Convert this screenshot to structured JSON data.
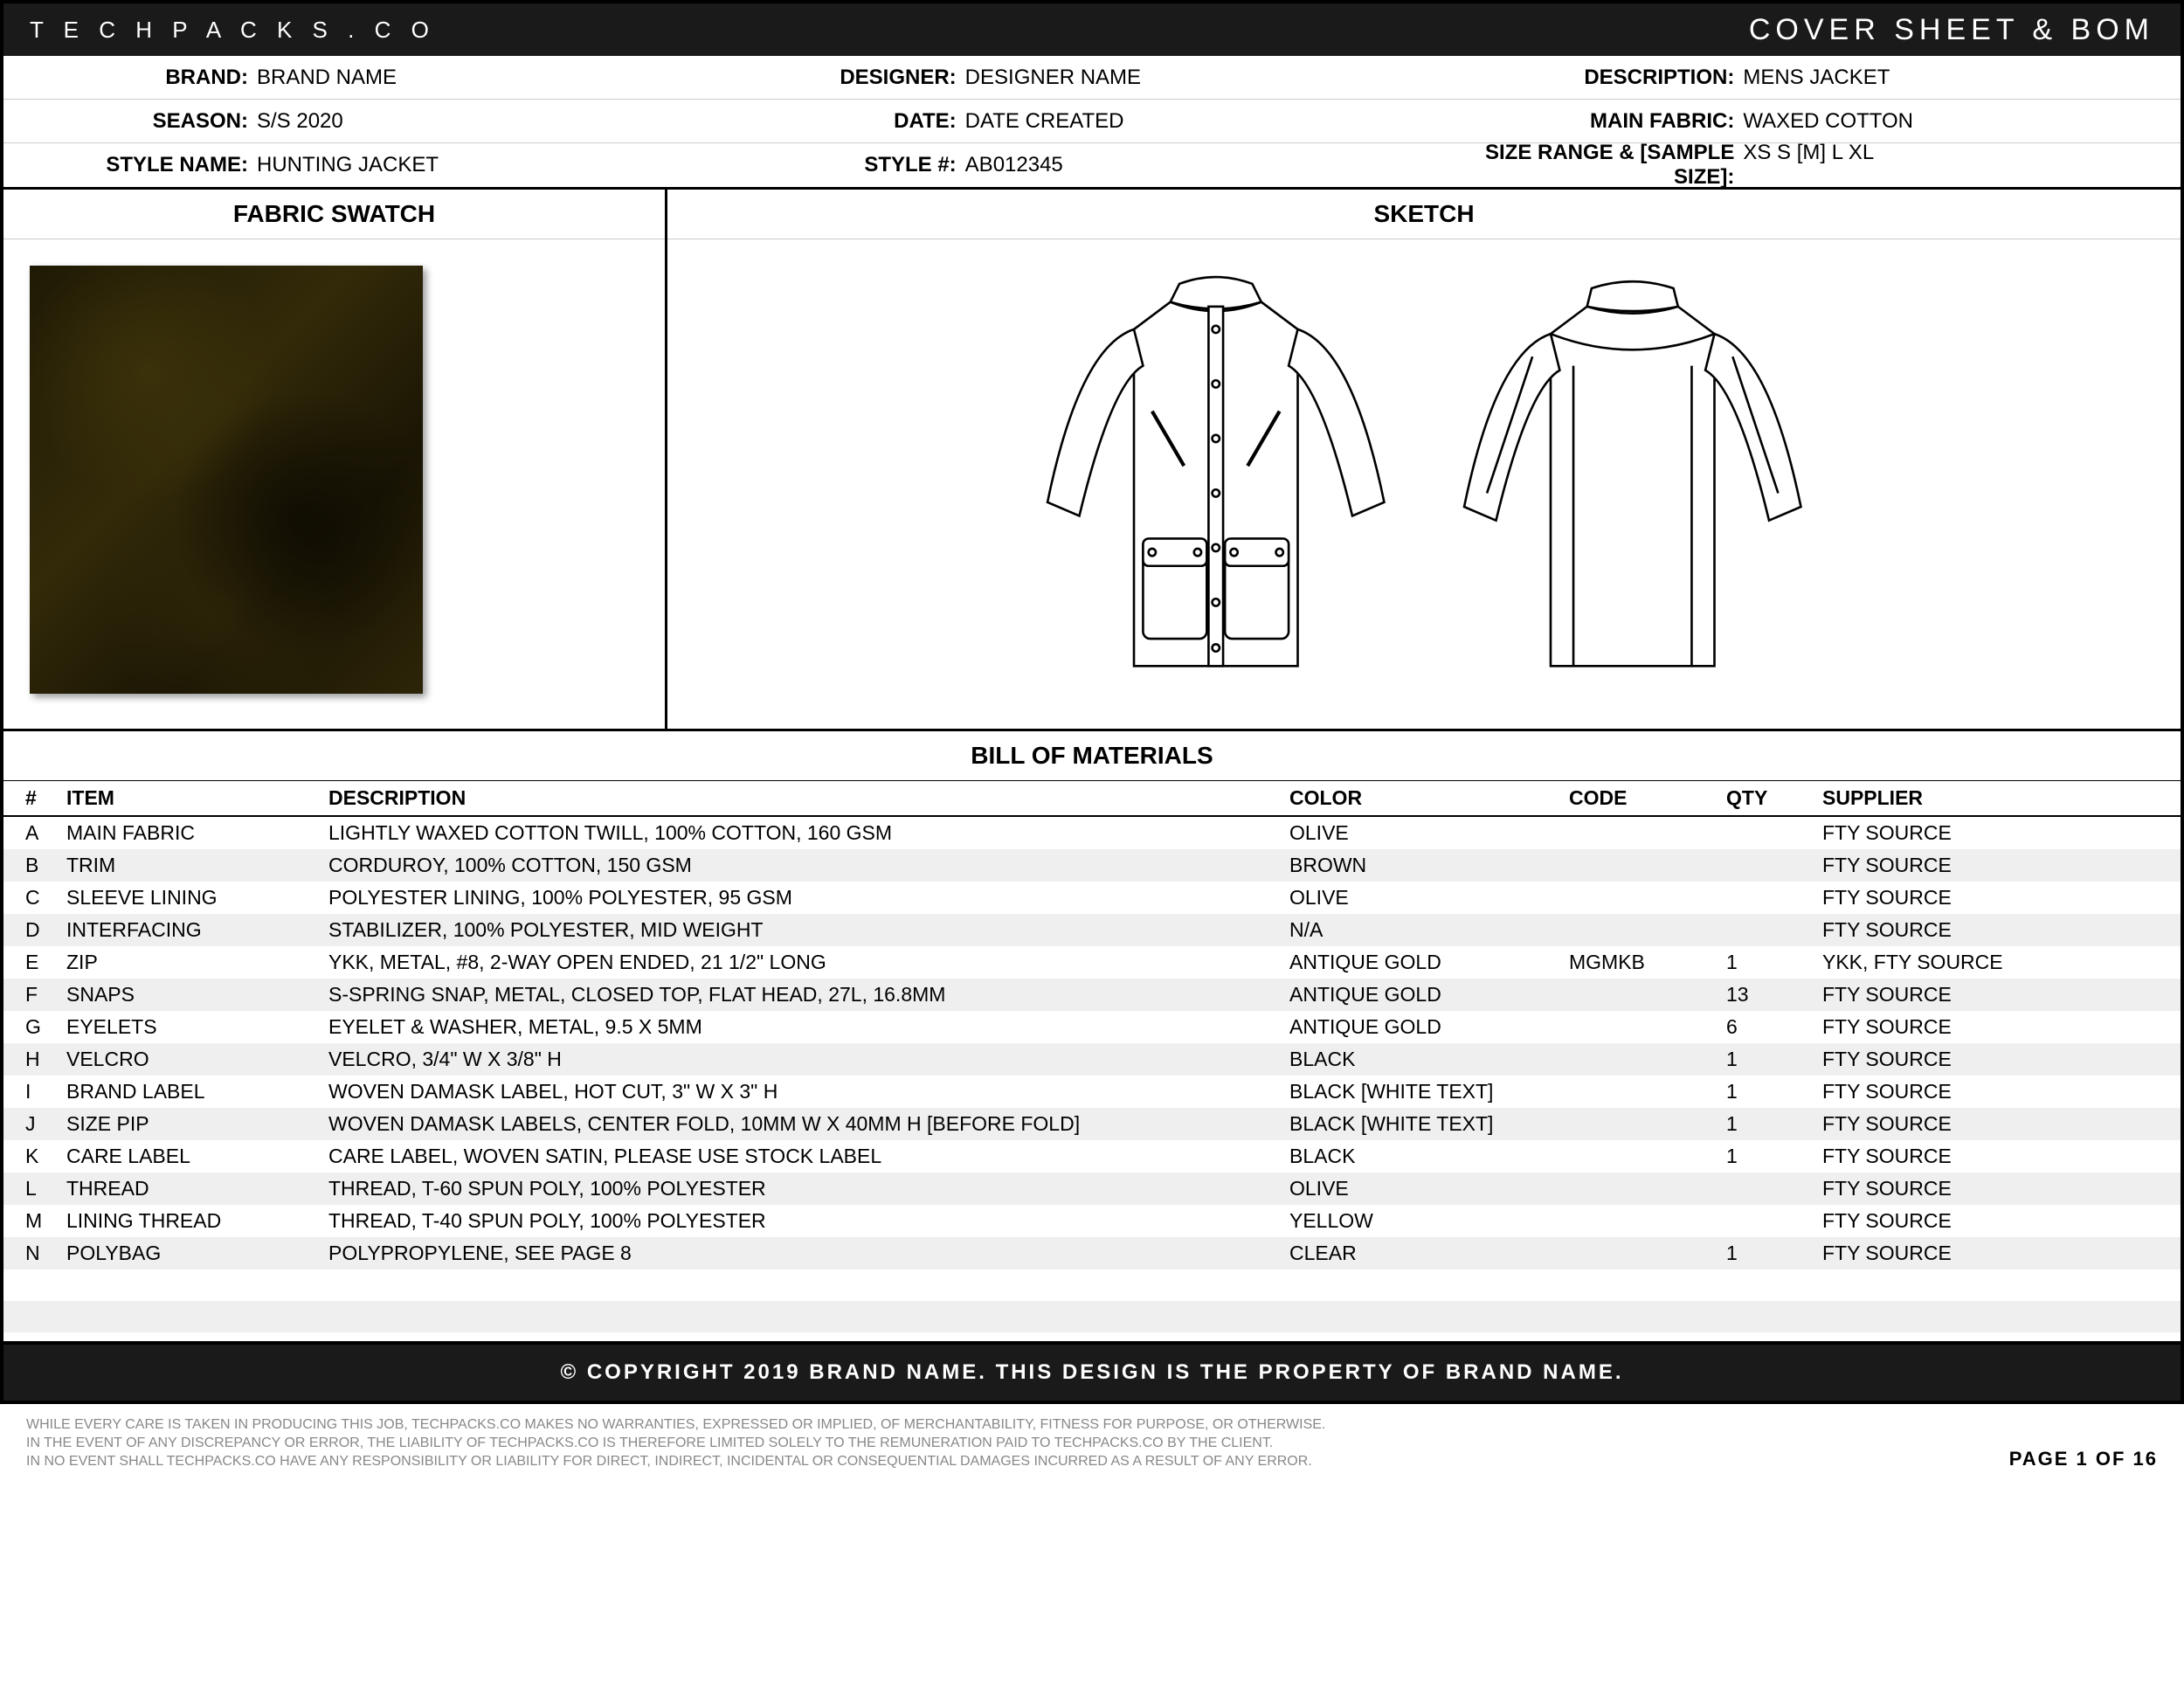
{
  "header": {
    "site": "T E C H P A C K S . C O",
    "title": "COVER SHEET & BOM"
  },
  "meta": {
    "brand_label": "BRAND:",
    "brand": "BRAND NAME",
    "designer_label": "DESIGNER:",
    "designer": "DESIGNER NAME",
    "description_label": "DESCRIPTION:",
    "description": "MENS JACKET",
    "season_label": "SEASON:",
    "season": "S/S 2020",
    "date_label": "DATE:",
    "date": "DATE CREATED",
    "mainfabric_label": "MAIN FABRIC:",
    "mainfabric": "WAXED COTTON",
    "stylename_label": "STYLE NAME:",
    "stylename": "HUNTING JACKET",
    "styleno_label": "STYLE #:",
    "styleno": "AB012345",
    "sizerange_label": "SIZE RANGE & [SAMPLE SIZE]:",
    "sizerange": "XS  S  [M]  L  XL"
  },
  "panels": {
    "swatch_title": "FABRIC SWATCH",
    "sketch_title": "SKETCH"
  },
  "swatch": {
    "color": "#2b2408"
  },
  "bom": {
    "title": "BILL OF MATERIALS",
    "cols": {
      "hash": "#",
      "item": "ITEM",
      "desc": "DESCRIPTION",
      "color": "COLOR",
      "code": "CODE",
      "qty": "QTY",
      "supplier": "SUPPLIER"
    },
    "rows": [
      {
        "hash": "A",
        "item": "MAIN FABRIC",
        "desc": "LIGHTLY WAXED COTTON TWILL, 100% COTTON, 160 GSM",
        "color": "OLIVE",
        "code": "",
        "qty": "",
        "supplier": "FTY SOURCE"
      },
      {
        "hash": "B",
        "item": "TRIM",
        "desc": "CORDUROY, 100% COTTON, 150 GSM",
        "color": "BROWN",
        "code": "",
        "qty": "",
        "supplier": "FTY SOURCE"
      },
      {
        "hash": "C",
        "item": "SLEEVE LINING",
        "desc": "POLYESTER LINING, 100% POLYESTER, 95 GSM",
        "color": "OLIVE",
        "code": "",
        "qty": "",
        "supplier": "FTY SOURCE"
      },
      {
        "hash": "D",
        "item": "INTERFACING",
        "desc": "STABILIZER, 100% POLYESTER, MID WEIGHT",
        "color": "N/A",
        "code": "",
        "qty": "",
        "supplier": "FTY SOURCE"
      },
      {
        "hash": "E",
        "item": "ZIP",
        "desc": "YKK, METAL, #8, 2-WAY OPEN ENDED, 21 1/2\" LONG",
        "color": "ANTIQUE GOLD",
        "code": "MGMKB",
        "qty": "1",
        "supplier": "YKK, FTY SOURCE"
      },
      {
        "hash": "F",
        "item": "SNAPS",
        "desc": "S-SPRING SNAP, METAL, CLOSED TOP, FLAT HEAD, 27L, 16.8MM",
        "color": "ANTIQUE GOLD",
        "code": "",
        "qty": "13",
        "supplier": "FTY SOURCE"
      },
      {
        "hash": "G",
        "item": "EYELETS",
        "desc": "EYELET & WASHER, METAL, 9.5 X 5MM",
        "color": "ANTIQUE GOLD",
        "code": "",
        "qty": "6",
        "supplier": "FTY SOURCE"
      },
      {
        "hash": "H",
        "item": "VELCRO",
        "desc": "VELCRO, 3/4\" W  X  3/8\" H",
        "color": "BLACK",
        "code": "",
        "qty": "1",
        "supplier": "FTY SOURCE"
      },
      {
        "hash": "I",
        "item": "BRAND LABEL",
        "desc": "WOVEN DAMASK LABEL, HOT CUT, 3\" W  X  3\" H",
        "color": "BLACK [WHITE TEXT]",
        "code": "",
        "qty": "1",
        "supplier": "FTY SOURCE"
      },
      {
        "hash": "J",
        "item": "SIZE PIP",
        "desc": "WOVEN DAMASK LABELS, CENTER FOLD, 10MM W  X  40MM H [BEFORE FOLD]",
        "color": "BLACK [WHITE TEXT]",
        "code": "",
        "qty": "1",
        "supplier": "FTY SOURCE"
      },
      {
        "hash": "K",
        "item": "CARE LABEL",
        "desc": "CARE LABEL, WOVEN SATIN, PLEASE USE STOCK LABEL",
        "color": "BLACK",
        "code": "",
        "qty": "1",
        "supplier": "FTY SOURCE"
      },
      {
        "hash": "L",
        "item": "THREAD",
        "desc": "THREAD, T-60 SPUN POLY, 100% POLYESTER",
        "color": "OLIVE",
        "code": "",
        "qty": "",
        "supplier": "FTY SOURCE"
      },
      {
        "hash": "M",
        "item": "LINING THREAD",
        "desc": "THREAD, T-40 SPUN POLY, 100% POLYESTER",
        "color": "YELLOW",
        "code": "",
        "qty": "",
        "supplier": "FTY SOURCE"
      },
      {
        "hash": "N",
        "item": "POLYBAG",
        "desc": "POLYPROPYLENE, SEE PAGE 8",
        "color": "CLEAR",
        "code": "",
        "qty": "1",
        "supplier": "FTY SOURCE"
      }
    ],
    "blank_rows": 2
  },
  "copyright": "© COPYRIGHT 2019 BRAND NAME.  THIS DESIGN IS THE PROPERTY OF BRAND NAME.",
  "footer": {
    "line1": "WHILE EVERY CARE IS TAKEN IN PRODUCING THIS JOB, TECHPACKS.CO MAKES NO WARRANTIES, EXPRESSED OR IMPLIED, OF MERCHANTABILITY, FITNESS FOR PURPOSE, OR OTHERWISE.",
    "line2": "IN THE EVENT OF ANY DISCREPANCY OR ERROR, THE LIABILITY OF TECHPACKS.CO IS THEREFORE LIMITED SOLELY TO THE REMUNERATION PAID TO TECHPACKS.CO BY THE CLIENT.",
    "line3": "IN NO EVENT SHALL TECHPACKS.CO HAVE ANY RESPONSIBILITY OR LIABILITY FOR DIRECT, INDIRECT, INCIDENTAL OR CONSEQUENTIAL DAMAGES INCURRED AS A RESULT OF ANY ERROR.",
    "page": "PAGE 1 OF 16"
  }
}
